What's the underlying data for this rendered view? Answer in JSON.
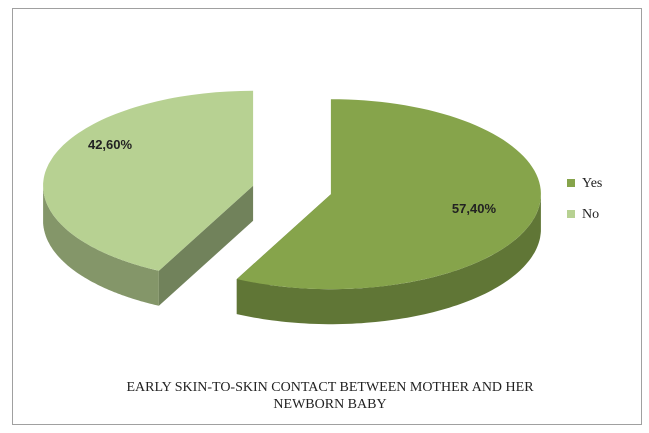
{
  "chart_data": {
    "type": "pie3d",
    "title": "EARLY SKIN-TO-SKIN CONTACT BETWEEN MOTHER AND HER NEWBORN BABY",
    "categories": [
      "Yes",
      "No"
    ],
    "values": [
      57.4,
      42.6
    ],
    "value_labels": [
      "57,40%",
      "42,60%"
    ],
    "colors": [
      "#86a44b",
      "#b7d192"
    ],
    "legend": "right"
  }
}
